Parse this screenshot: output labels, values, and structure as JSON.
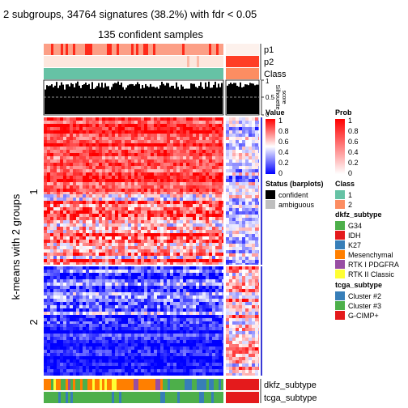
{
  "title": "2 subgroups, 34764 signatures (38.2%) with fdr < 0.05",
  "subtitle": "135 confident samples",
  "row_title": "k-means with 2 groups",
  "row_groups": [
    "1",
    "2"
  ],
  "top_annotations": [
    "p1",
    "p2",
    "Class"
  ],
  "silhouette": {
    "label": "Silhouette\nscore",
    "label_lines": [
      "Silhouette",
      "score"
    ],
    "ticks": [
      "1",
      "0.5",
      "0"
    ]
  },
  "bottom_annotations": [
    "dkfz_subtype",
    "tcga_subtype"
  ],
  "legends": {
    "value": {
      "title": "Value",
      "labels": [
        "1",
        "0.8",
        "0.6",
        "0.4",
        "0.2",
        "0"
      ],
      "colors": [
        "#ff0000",
        "#ffffff",
        "#0000ff"
      ]
    },
    "prob": {
      "title": "Prob",
      "labels": [
        "1",
        "0.8",
        "0.6",
        "0.4",
        "0.2",
        "0"
      ],
      "colors": [
        "#ff0000",
        "#ffffff"
      ]
    },
    "status": {
      "title": "Status (barplots)",
      "items": [
        {
          "label": "confident",
          "color": "#000000"
        },
        {
          "label": "ambiguous",
          "color": "#bebebe"
        }
      ]
    },
    "class": {
      "title": "Class",
      "items": [
        {
          "label": "1",
          "color": "#66c2a5"
        },
        {
          "label": "2",
          "color": "#fc8d62"
        }
      ]
    },
    "dkfz": {
      "title": "dkfz_subtype",
      "items": [
        {
          "label": "G34",
          "color": "#4daf4a"
        },
        {
          "label": "IDH",
          "color": "#e41a1c"
        },
        {
          "label": "K27",
          "color": "#377eb8"
        },
        {
          "label": "Mesenchymal",
          "color": "#ff7f00"
        },
        {
          "label": "RTK I PDGFRA",
          "color": "#984ea3"
        },
        {
          "label": "RTK II Classic",
          "color": "#ffff33"
        }
      ]
    },
    "tcga": {
      "title": "tcga_subtype",
      "items": [
        {
          "label": "Cluster #2",
          "color": "#377eb8"
        },
        {
          "label": "Cluster #3",
          "color": "#4daf4a"
        },
        {
          "label": "G-CIMP+",
          "color": "#e41a1c"
        }
      ]
    }
  },
  "chart_data": {
    "type": "heatmap",
    "title": "2 subgroups, 34764 signatures (38.2%) with fdr < 0.05",
    "subtitle": "135 confident samples",
    "value_range": [
      0,
      1
    ],
    "column_groups": [
      "1",
      "2"
    ],
    "row_groups": [
      "1",
      "2"
    ],
    "confident_samples": 135,
    "signatures": 34764,
    "silhouette_ylim": [
      0,
      1
    ],
    "silhouette_reference_line": 0.5
  }
}
